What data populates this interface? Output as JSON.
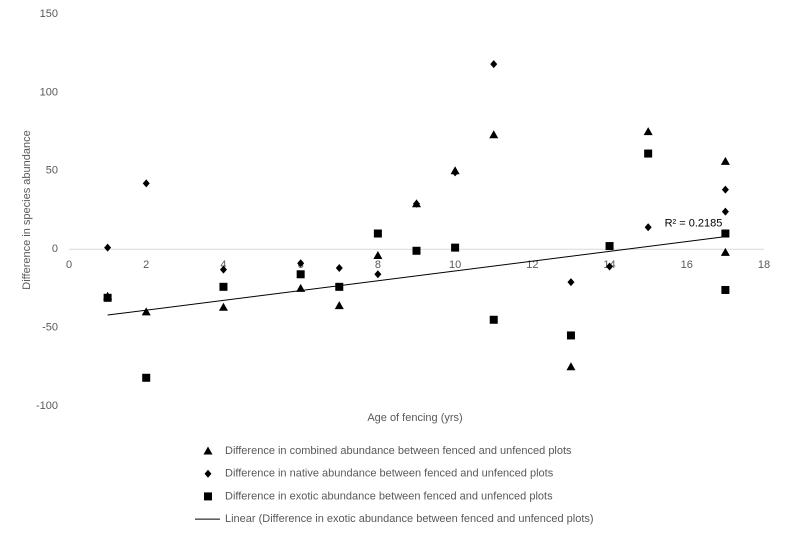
{
  "chart_data": {
    "type": "scatter",
    "x_label": "Age of fencing (yrs)",
    "y_label": "Difference in species abundance",
    "xlim": [
      0,
      18
    ],
    "xticks": [
      0,
      2,
      4,
      6,
      8,
      10,
      12,
      14,
      16,
      18
    ],
    "ylim": [
      -100,
      150
    ],
    "yticks": [
      -100,
      -50,
      0,
      50,
      100,
      150
    ],
    "grid": false,
    "legend": "bottom",
    "series": [
      {
        "name": "Difference in combined abundance between fenced and unfenced plots",
        "marker": "triangle",
        "color": "#000000",
        "x": [
          1,
          2,
          4,
          6,
          7,
          8,
          9,
          10,
          11,
          13,
          15,
          17,
          17
        ],
        "values": [
          -30,
          -40,
          -37,
          -25,
          -36,
          -4,
          29,
          50,
          73,
          -75,
          75,
          56,
          -2
        ]
      },
      {
        "name": "Difference in native abundance between fenced and unfenced plots",
        "marker": "diamond",
        "color": "#000000",
        "x": [
          1,
          2,
          4,
          6,
          7,
          8,
          9,
          10,
          11,
          13,
          14,
          15,
          17,
          17
        ],
        "values": [
          1,
          42,
          -13,
          -9,
          -12,
          -16,
          29,
          49,
          118,
          -21,
          -11,
          14,
          38,
          24
        ]
      },
      {
        "name": "Difference in exotic abundance between fenced and unfenced plots",
        "marker": "square",
        "color": "#000000",
        "x": [
          1,
          2,
          4,
          6,
          7,
          8,
          9,
          10,
          11,
          13,
          14,
          15,
          17,
          17
        ],
        "values": [
          -31,
          -82,
          -24,
          -16,
          -24,
          10,
          -1,
          1,
          -45,
          -55,
          2,
          61,
          10,
          -26
        ]
      }
    ],
    "trendline": {
      "name": "Linear (Difference in exotic abundance between fenced and unfenced plots)",
      "color": "#000000",
      "x": [
        1,
        17
      ],
      "values": [
        -42,
        8
      ],
      "label": "R² = 0.2185"
    }
  }
}
